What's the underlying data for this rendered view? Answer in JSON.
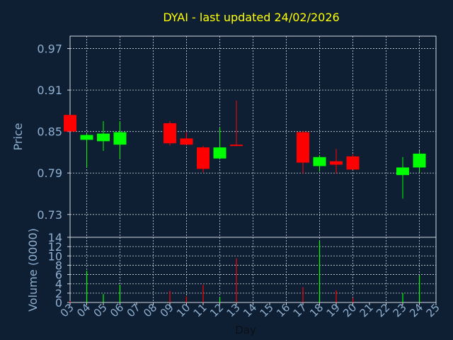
{
  "title": "DYAI - last updated 24/02/2026",
  "colors": {
    "background": "#0f1f33",
    "title": "#ffff00",
    "axis_text": "#8fb0d0",
    "grid": "#d0d8e0",
    "up": "#00ff00",
    "down": "#ff0000"
  },
  "chart_data": [
    {
      "type": "candlestick",
      "ylabel": "Price",
      "ylim": [
        0.697,
        0.988
      ],
      "yticks": [
        "0.97",
        "0.91",
        "0.85",
        "0.79",
        "0.73"
      ],
      "ytick_values": [
        0.97,
        0.91,
        0.85,
        0.79,
        0.73
      ],
      "grid": true,
      "candles": [
        {
          "day": 3,
          "open": 0.874,
          "high": 0.874,
          "low": 0.85,
          "close": 0.85
        },
        {
          "day": 4,
          "open": 0.838,
          "high": 0.847,
          "low": 0.798,
          "close": 0.845
        },
        {
          "day": 5,
          "open": 0.836,
          "high": 0.865,
          "low": 0.822,
          "close": 0.847
        },
        {
          "day": 6,
          "open": 0.831,
          "high": 0.865,
          "low": 0.811,
          "close": 0.849
        },
        {
          "day": 9,
          "open": 0.862,
          "high": 0.865,
          "low": 0.83,
          "close": 0.833
        },
        {
          "day": 10,
          "open": 0.84,
          "high": 0.849,
          "low": 0.831,
          "close": 0.831
        },
        {
          "day": 11,
          "open": 0.827,
          "high": 0.829,
          "low": 0.791,
          "close": 0.796
        },
        {
          "day": 12,
          "open": 0.811,
          "high": 0.856,
          "low": 0.811,
          "close": 0.827
        },
        {
          "day": 13,
          "open": 0.831,
          "high": 0.895,
          "low": 0.829,
          "close": 0.829
        },
        {
          "day": 17,
          "open": 0.849,
          "high": 0.851,
          "low": 0.789,
          "close": 0.805
        },
        {
          "day": 18,
          "open": 0.8,
          "high": 0.816,
          "low": 0.792,
          "close": 0.813
        },
        {
          "day": 19,
          "open": 0.807,
          "high": 0.825,
          "low": 0.789,
          "close": 0.802
        },
        {
          "day": 20,
          "open": 0.814,
          "high": 0.817,
          "low": 0.795,
          "close": 0.795
        },
        {
          "day": 23,
          "open": 0.787,
          "high": 0.813,
          "low": 0.753,
          "close": 0.798
        },
        {
          "day": 24,
          "open": 0.798,
          "high": 0.822,
          "low": 0.791,
          "close": 0.818
        }
      ]
    },
    {
      "type": "bar",
      "ylabel": "Volume (0000)",
      "xlabel": "Day",
      "ylim": [
        0,
        14
      ],
      "yticks": [
        "14",
        "12",
        "10",
        "8",
        "6",
        "4",
        "2",
        "0"
      ],
      "ytick_values": [
        14,
        12,
        10,
        8,
        6,
        4,
        2,
        0
      ],
      "xlim": [
        3,
        25
      ],
      "xticks": [
        "03",
        "04",
        "05",
        "06",
        "07",
        "08",
        "09",
        "10",
        "11",
        "12",
        "13",
        "14",
        "15",
        "16",
        "17",
        "18",
        "19",
        "20",
        "21",
        "22",
        "23",
        "24",
        "25"
      ],
      "xtick_values": [
        3,
        4,
        5,
        6,
        7,
        8,
        9,
        10,
        11,
        12,
        13,
        14,
        15,
        16,
        17,
        18,
        19,
        20,
        21,
        22,
        23,
        24,
        25
      ],
      "grid": true,
      "bars": [
        {
          "day": 3,
          "value": 0.3,
          "direction": "down"
        },
        {
          "day": 4,
          "value": 6.8,
          "direction": "up"
        },
        {
          "day": 5,
          "value": 1.8,
          "direction": "up"
        },
        {
          "day": 6,
          "value": 3.8,
          "direction": "up"
        },
        {
          "day": 9,
          "value": 2.5,
          "direction": "down"
        },
        {
          "day": 10,
          "value": 1.3,
          "direction": "down"
        },
        {
          "day": 11,
          "value": 3.8,
          "direction": "down"
        },
        {
          "day": 12,
          "value": 1.2,
          "direction": "up"
        },
        {
          "day": 13,
          "value": 9.5,
          "direction": "down"
        },
        {
          "day": 17,
          "value": 3.3,
          "direction": "down"
        },
        {
          "day": 18,
          "value": 13.2,
          "direction": "up"
        },
        {
          "day": 19,
          "value": 2.6,
          "direction": "down"
        },
        {
          "day": 20,
          "value": 1.0,
          "direction": "down"
        },
        {
          "day": 23,
          "value": 2.0,
          "direction": "up"
        },
        {
          "day": 24,
          "value": 5.8,
          "direction": "up"
        }
      ]
    }
  ]
}
